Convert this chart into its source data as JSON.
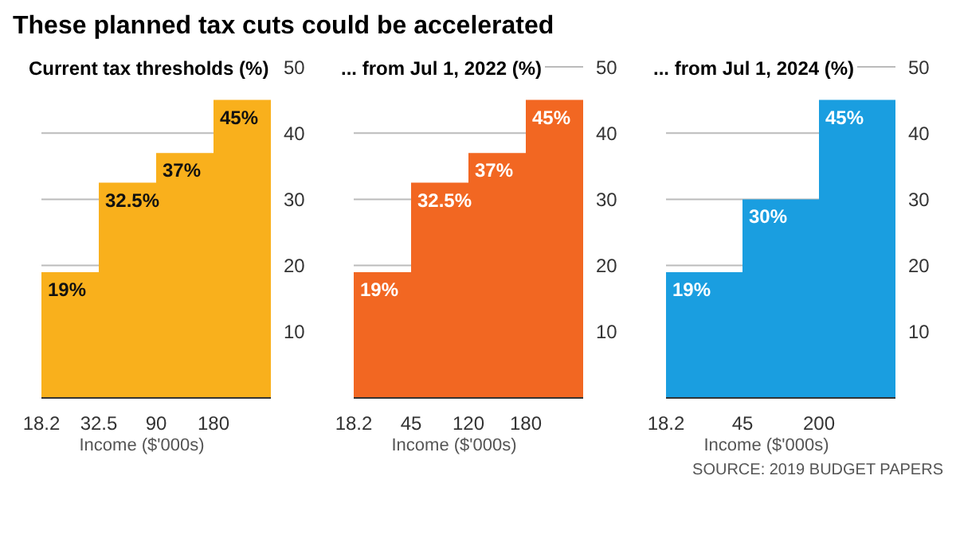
{
  "chart_data": [
    {
      "type": "bar",
      "title": "These planned tax cuts could be accelerated",
      "subtitle": "Current tax thresholds (%)",
      "xlabel": "Income ($'000s)",
      "categories": [
        "18.2",
        "32.5",
        "90",
        "180"
      ],
      "values": [
        19,
        32.5,
        37,
        45
      ],
      "value_labels": [
        "19%",
        "32.5%",
        "37%",
        "45%"
      ],
      "color": "#f9b01c",
      "ylim": [
        0,
        50
      ],
      "yticks": [
        10,
        20,
        30,
        40,
        50
      ],
      "grid": "y"
    },
    {
      "type": "bar",
      "subtitle": "... from Jul 1, 2022 (%)",
      "xlabel": "Income ($'000s)",
      "categories": [
        "18.2",
        "45",
        "120",
        "180"
      ],
      "values": [
        19,
        32.5,
        37,
        45
      ],
      "value_labels": [
        "19%",
        "32.5%",
        "37%",
        "45%"
      ],
      "color": "#f26722",
      "ylim": [
        0,
        50
      ],
      "yticks": [
        10,
        20,
        30,
        40,
        50
      ],
      "grid": "y"
    },
    {
      "type": "bar",
      "subtitle": "... from Jul 1, 2024 (%)",
      "xlabel": "Income ($'000s)",
      "categories": [
        "18.2",
        "45",
        "200"
      ],
      "values": [
        19,
        30,
        45
      ],
      "value_labels": [
        "19%",
        "30%",
        "45%"
      ],
      "color": "#1a9ee0",
      "ylim": [
        0,
        50
      ],
      "yticks": [
        10,
        20,
        30,
        40,
        50
      ],
      "grid": "y",
      "annotations": [
        "SOURCE: 2019 BUDGET PAPERS"
      ]
    }
  ]
}
